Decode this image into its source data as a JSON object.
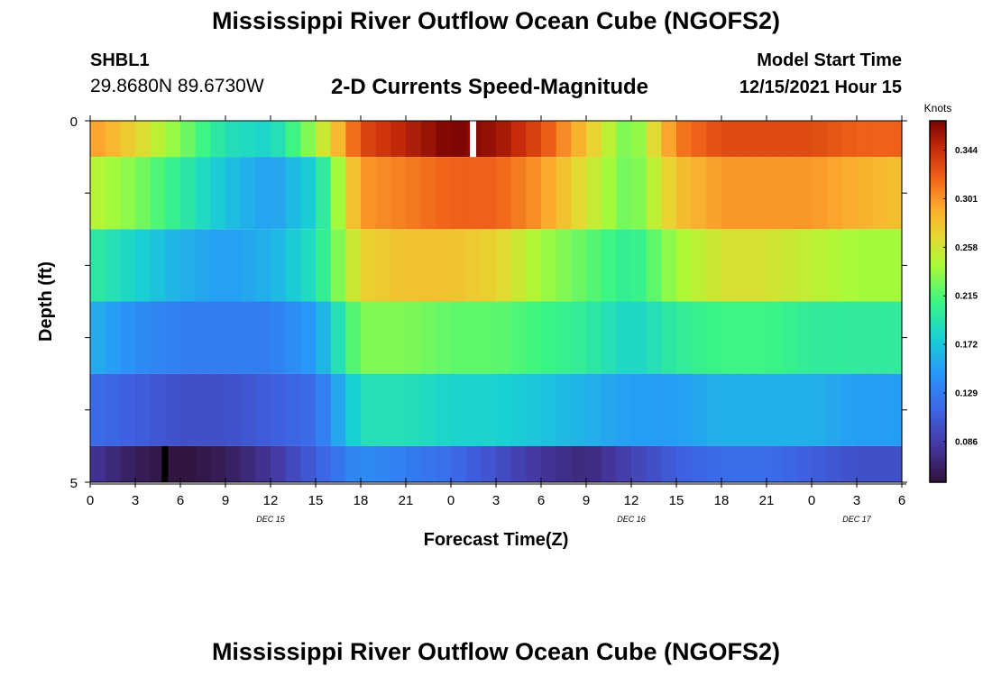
{
  "header": {
    "title": "Mississippi River Outflow Ocean Cube (NGOFS2)",
    "station_id": "SHBL1",
    "coords": "29.8680N  89.6730W",
    "subtitle": "2-D Currents Speed-Magnitude",
    "model_start_label": "Model Start Time",
    "model_start_value": "12/15/2021 Hour 15"
  },
  "footer": {
    "title": "Mississippi River Outflow Ocean Cube (NGOFS2)"
  },
  "chart_data": {
    "type": "heatmap",
    "title": "2-D Currents Speed-Magnitude",
    "xlabel": "Forecast Time(Z)",
    "ylabel": "Depth (ft)",
    "x_range_hours": [
      0,
      54
    ],
    "x_tick_labels": [
      "0",
      "3",
      "6",
      "9",
      "12",
      "15",
      "18",
      "21",
      "0",
      "3",
      "6",
      "9",
      "12",
      "15",
      "18",
      "21",
      "0",
      "3",
      "6"
    ],
    "date_labels": [
      {
        "label": "DEC 15",
        "hour": 12
      },
      {
        "label": "DEC 16",
        "hour": 36
      },
      {
        "label": "DEC 17",
        "hour": 51
      }
    ],
    "y_range": [
      0,
      5
    ],
    "y_tick_labels": [
      "0",
      "5"
    ],
    "colorbar": {
      "title": "Knots",
      "range": [
        0.05,
        0.37
      ],
      "tick_values": [
        0.086,
        0.129,
        0.172,
        0.215,
        0.258,
        0.301,
        0.344
      ],
      "tick_labels": [
        "0.086",
        "0.129",
        "0.172",
        "0.215",
        "0.258",
        "0.301",
        "0.344"
      ]
    },
    "layers": [
      {
        "depth_top": 0.0,
        "depth_bottom": 0.5,
        "hours": [
          0,
          3,
          6,
          9,
          12,
          15,
          18,
          21,
          24,
          27,
          30,
          33,
          36,
          39,
          42,
          45,
          48,
          51,
          54
        ],
        "values": [
          0.3,
          0.27,
          0.23,
          0.19,
          0.18,
          0.24,
          0.33,
          0.35,
          0.37,
          0.36,
          0.33,
          0.28,
          0.22,
          0.31,
          0.33,
          0.33,
          0.33,
          0.32,
          0.32
        ]
      },
      {
        "depth_top": 0.5,
        "depth_bottom": 1.5,
        "hours": [
          0,
          3,
          6,
          9,
          12,
          15,
          18,
          21,
          24,
          27,
          30,
          33,
          36,
          39,
          42,
          45,
          48,
          51,
          54
        ],
        "values": [
          0.25,
          0.23,
          0.2,
          0.17,
          0.15,
          0.18,
          0.3,
          0.31,
          0.32,
          0.32,
          0.3,
          0.26,
          0.22,
          0.28,
          0.3,
          0.3,
          0.3,
          0.29,
          0.28
        ]
      },
      {
        "depth_top": 1.5,
        "depth_bottom": 2.5,
        "hours": [
          0,
          3,
          6,
          9,
          12,
          15,
          18,
          21,
          24,
          27,
          30,
          33,
          36,
          39,
          42,
          45,
          48,
          51,
          54
        ],
        "values": [
          0.2,
          0.18,
          0.16,
          0.15,
          0.16,
          0.19,
          0.27,
          0.28,
          0.28,
          0.27,
          0.24,
          0.22,
          0.2,
          0.24,
          0.26,
          0.26,
          0.25,
          0.24,
          0.24
        ]
      },
      {
        "depth_top": 2.5,
        "depth_bottom": 3.5,
        "hours": [
          0,
          3,
          6,
          9,
          12,
          15,
          18,
          21,
          24,
          27,
          30,
          33,
          36,
          39,
          42,
          45,
          48,
          51,
          54
        ],
        "values": [
          0.16,
          0.14,
          0.13,
          0.13,
          0.13,
          0.15,
          0.23,
          0.23,
          0.22,
          0.22,
          0.21,
          0.2,
          0.18,
          0.2,
          0.21,
          0.21,
          0.2,
          0.2,
          0.2
        ]
      },
      {
        "depth_top": 3.5,
        "depth_bottom": 4.5,
        "hours": [
          0,
          3,
          6,
          9,
          12,
          15,
          18,
          21,
          24,
          27,
          30,
          33,
          36,
          39,
          42,
          45,
          48,
          51,
          54
        ],
        "values": [
          0.12,
          0.11,
          0.1,
          0.1,
          0.11,
          0.12,
          0.19,
          0.19,
          0.18,
          0.18,
          0.17,
          0.16,
          0.15,
          0.15,
          0.16,
          0.16,
          0.16,
          0.15,
          0.15
        ]
      },
      {
        "depth_top": 4.5,
        "depth_bottom": 5.0,
        "hours": [
          0,
          3,
          6,
          9,
          12,
          15,
          18,
          21,
          24,
          27,
          30,
          33,
          36,
          39,
          42,
          45,
          48,
          51,
          54
        ],
        "values": [
          0.08,
          0.06,
          0.05,
          0.06,
          0.08,
          0.11,
          0.14,
          0.13,
          0.12,
          0.1,
          0.08,
          0.07,
          0.09,
          0.11,
          0.12,
          0.12,
          0.11,
          0.1,
          0.1
        ]
      }
    ],
    "markers": [
      {
        "hour": 25.5,
        "depth_top": 0.0,
        "depth_bottom": 0.5,
        "color": "#ffffff"
      },
      {
        "hour": 5.0,
        "depth_top": 4.5,
        "depth_bottom": 5.0,
        "color": "#000000"
      }
    ]
  }
}
